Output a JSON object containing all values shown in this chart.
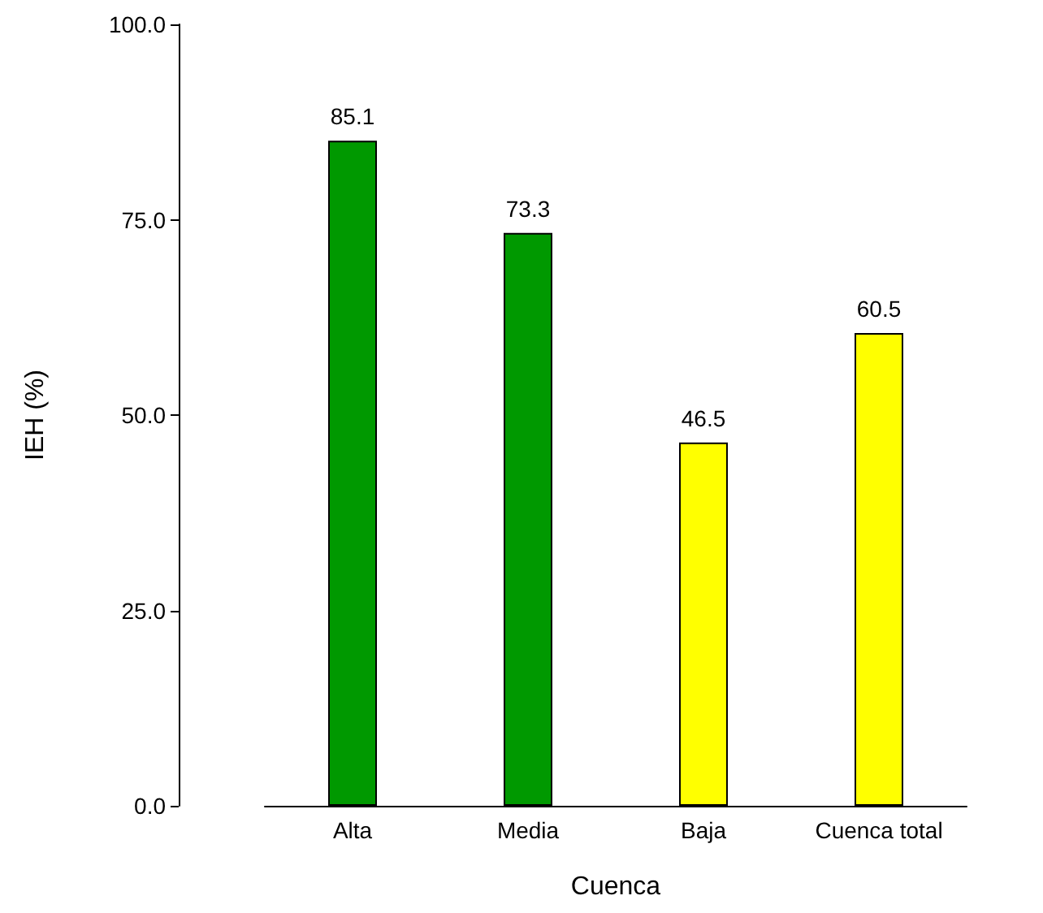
{
  "chart_data": {
    "type": "bar",
    "categories": [
      "Alta",
      "Media",
      "Baja",
      "Cuenca total"
    ],
    "values": [
      85.1,
      73.3,
      46.5,
      60.5
    ],
    "colors": [
      "#009900",
      "#009900",
      "#ffff00",
      "#ffff00"
    ],
    "xlabel": "Cuenca",
    "ylabel": "IEH (%)",
    "ylim": [
      0,
      100
    ],
    "yticks": [
      {
        "value": 0,
        "label": "0.0"
      },
      {
        "value": 25,
        "label": "25.0"
      },
      {
        "value": 50,
        "label": "50.0"
      },
      {
        "value": 75,
        "label": "75.0"
      },
      {
        "value": 100,
        "label": "100.0"
      }
    ],
    "data_labels": true,
    "grid": false
  }
}
